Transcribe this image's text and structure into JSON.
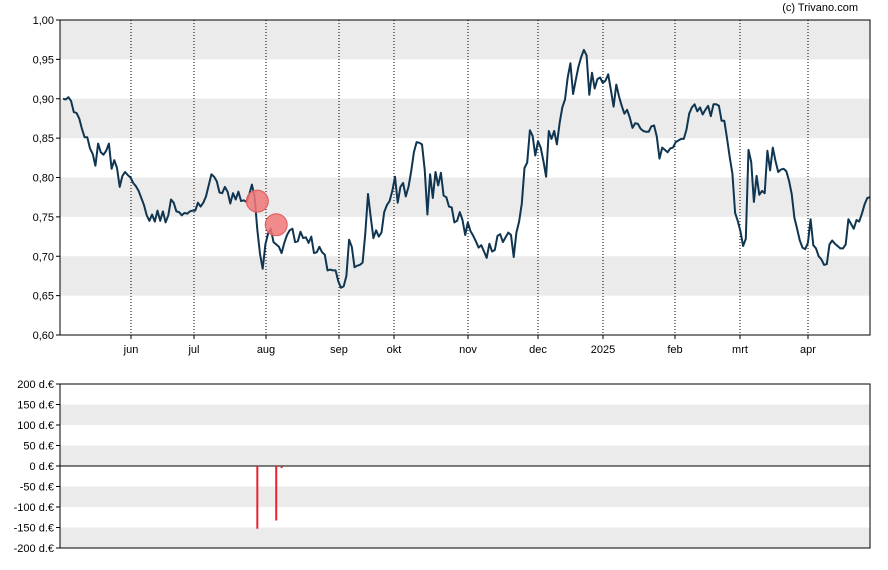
{
  "copyright": "(c) Trivano.com",
  "colors": {
    "line": "#0f3550",
    "band": "#ebebeb",
    "marker": "#f07878",
    "bar": "#e8222f",
    "grid": "#000000"
  },
  "chart_data": [
    {
      "type": "line",
      "title": "",
      "xlabel": "",
      "ylabel": "",
      "ylim": [
        0.6,
        1.0
      ],
      "yticks": [
        "1,00",
        "0,95",
        "0,90",
        "0,85",
        "0,80",
        "0,75",
        "0,70",
        "0,65",
        "0,60"
      ],
      "xticks": [
        "jun",
        "jul",
        "aug",
        "sep",
        "okt",
        "nov",
        "dec",
        "2025",
        "feb",
        "mrt",
        "apr"
      ],
      "grid": "vertical dotted month lines, alternating horizontal bands",
      "series": [
        {
          "values": [
            0.9,
            0.899,
            0.902,
            0.897,
            0.883,
            0.882,
            0.875,
            0.862,
            0.851,
            0.851,
            0.837,
            0.83,
            0.815,
            0.843,
            0.832,
            0.829,
            0.834,
            0.843,
            0.811,
            0.822,
            0.812,
            0.788,
            0.802,
            0.807,
            0.803,
            0.8,
            0.793,
            0.789,
            0.783,
            0.774,
            0.765,
            0.752,
            0.745,
            0.753,
            0.744,
            0.758,
            0.745,
            0.757,
            0.743,
            0.752,
            0.772,
            0.768,
            0.757,
            0.756,
            0.752,
            0.755,
            0.754,
            0.757,
            0.758,
            0.758,
            0.768,
            0.763,
            0.768,
            0.776,
            0.79,
            0.804,
            0.801,
            0.795,
            0.781,
            0.78,
            0.788,
            0.782,
            0.767,
            0.78,
            0.772,
            0.782,
            0.77,
            0.771,
            0.769,
            0.778,
            0.791,
            0.775,
            0.734,
            0.703,
            0.684,
            0.715,
            0.729,
            0.735,
            0.718,
            0.715,
            0.712,
            0.704,
            0.717,
            0.727,
            0.733,
            0.735,
            0.718,
            0.719,
            0.731,
            0.723,
            0.724,
            0.717,
            0.725,
            0.704,
            0.705,
            0.712,
            0.705,
            0.702,
            0.682,
            0.683,
            0.682,
            0.682,
            0.668,
            0.66,
            0.662,
            0.675,
            0.721,
            0.712,
            0.686,
            0.688,
            0.689,
            0.692,
            0.729,
            0.779,
            0.75,
            0.723,
            0.733,
            0.725,
            0.73,
            0.756,
            0.765,
            0.77,
            0.783,
            0.801,
            0.768,
            0.788,
            0.793,
            0.776,
            0.788,
            0.808,
            0.832,
            0.845,
            0.844,
            0.842,
            0.81,
            0.753,
            0.804,
            0.774,
            0.807,
            0.79,
            0.806,
            0.777,
            0.775,
            0.763,
            0.762,
            0.743,
            0.745,
            0.756,
            0.746,
            0.727,
            0.743,
            0.732,
            0.726,
            0.719,
            0.711,
            0.714,
            0.706,
            0.698,
            0.716,
            0.706,
            0.708,
            0.726,
            0.728,
            0.718,
            0.724,
            0.73,
            0.727,
            0.699,
            0.73,
            0.744,
            0.767,
            0.812,
            0.819,
            0.86,
            0.853,
            0.828,
            0.846,
            0.838,
            0.821,
            0.801,
            0.859,
            0.849,
            0.859,
            0.842,
            0.869,
            0.889,
            0.899,
            0.927,
            0.945,
            0.906,
            0.924,
            0.941,
            0.953,
            0.962,
            0.955,
            0.905,
            0.933,
            0.913,
            0.925,
            0.927,
            0.92,
            0.923,
            0.931,
            0.911,
            0.89,
            0.918,
            0.903,
            0.891,
            0.881,
            0.886,
            0.876,
            0.863,
            0.869,
            0.868,
            0.862,
            0.859,
            0.858,
            0.858,
            0.865,
            0.866,
            0.852,
            0.824,
            0.838,
            0.835,
            0.832,
            0.837,
            0.838,
            0.845,
            0.847,
            0.849,
            0.849,
            0.861,
            0.881,
            0.889,
            0.893,
            0.884,
            0.889,
            0.88,
            0.886,
            0.891,
            0.878,
            0.893,
            0.893,
            0.891,
            0.872,
            0.872,
            0.85,
            0.826,
            0.805,
            0.755,
            0.745,
            0.732,
            0.713,
            0.722,
            0.835,
            0.82,
            0.769,
            0.802,
            0.778,
            0.783,
            0.78,
            0.834,
            0.809,
            0.838,
            0.821,
            0.807,
            0.81,
            0.811,
            0.808,
            0.796,
            0.779,
            0.749,
            0.735,
            0.72,
            0.711,
            0.709,
            0.717,
            0.747,
            0.714,
            0.71,
            0.7,
            0.696,
            0.689,
            0.69,
            0.715,
            0.72,
            0.716,
            0.713,
            0.71,
            0.71,
            0.715,
            0.747,
            0.741,
            0.735,
            0.746,
            0.744,
            0.754,
            0.766,
            0.774,
            0.775
          ]
        }
      ],
      "markers": [
        {
          "index": 72,
          "value": 0.77
        },
        {
          "index": 79,
          "value": 0.74
        }
      ]
    },
    {
      "type": "bar",
      "title": "",
      "ylim": [
        -200,
        200
      ],
      "yticks": [
        "200 d.€",
        "150 d.€",
        "100 d.€",
        "50 d.€",
        "0 d.€",
        "-50 d.€",
        "-100 d.€",
        "-150 d.€",
        "-200 d.€"
      ],
      "series": [
        {
          "values": [
            {
              "index": 72,
              "value": -153
            },
            {
              "index": 79,
              "value": -133
            },
            {
              "index": 81,
              "value": -5
            }
          ]
        }
      ]
    }
  ]
}
